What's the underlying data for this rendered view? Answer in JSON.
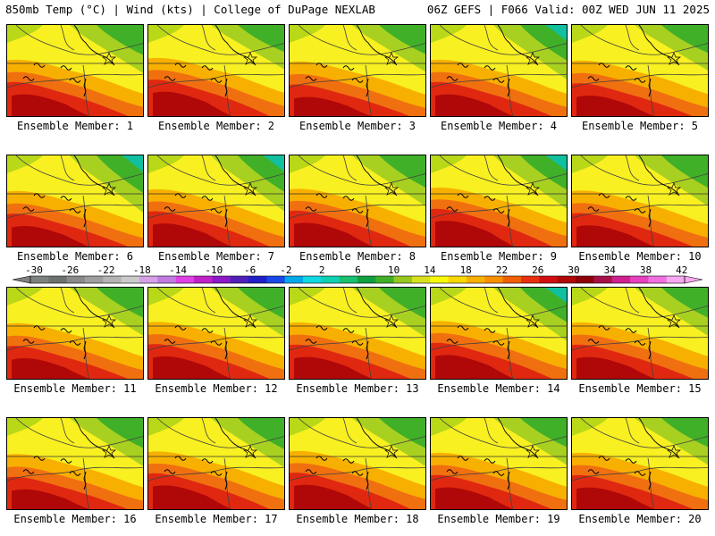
{
  "header": {
    "left": "850mb Temp (°C) | Wind (kts) | College of DuPage NEXLAB",
    "right": "06Z GEFS | F066 Valid: 00Z WED JUN 11 2025"
  },
  "colorbar": {
    "labels": [
      "-30",
      "-26",
      "-22",
      "-18",
      "-14",
      "-10",
      "-6",
      "-2",
      "2",
      "6",
      "10",
      "14",
      "18",
      "22",
      "26",
      "30",
      "34",
      "38",
      "42"
    ],
    "colors": [
      "#7e827e",
      "#6e726e",
      "#8a8a8a",
      "#9e9e9e",
      "#b4b4b4",
      "#cacaca",
      "#d6a0e6",
      "#c37ae0",
      "#e040e8",
      "#c020c8",
      "#8c18c8",
      "#5020b8",
      "#2020c8",
      "#1848e8",
      "#00a8e8",
      "#10d8e0",
      "#10d0b0",
      "#18c070",
      "#10a040",
      "#40b028",
      "#98c820",
      "#d8e020",
      "#f8f808",
      "#f8d800",
      "#f8b000",
      "#f89000",
      "#f06000",
      "#e83010",
      "#d01010",
      "#b00808",
      "#900008",
      "#a81048",
      "#d02090",
      "#e840c0",
      "#f070e0",
      "#f8a8f0"
    ]
  },
  "members": [
    {
      "label": "Ensemble Member: 1"
    },
    {
      "label": "Ensemble Member: 2"
    },
    {
      "label": "Ensemble Member: 3"
    },
    {
      "label": "Ensemble Member: 4"
    },
    {
      "label": "Ensemble Member: 5"
    },
    {
      "label": "Ensemble Member: 6"
    },
    {
      "label": "Ensemble Member: 7"
    },
    {
      "label": "Ensemble Member: 8"
    },
    {
      "label": "Ensemble Member: 9"
    },
    {
      "label": "Ensemble Member: 10"
    },
    {
      "label": "Ensemble Member: 11"
    },
    {
      "label": "Ensemble Member: 12"
    },
    {
      "label": "Ensemble Member: 13"
    },
    {
      "label": "Ensemble Member: 14"
    },
    {
      "label": "Ensemble Member: 15"
    },
    {
      "label": "Ensemble Member: 16"
    },
    {
      "label": "Ensemble Member: 17"
    },
    {
      "label": "Ensemble Member: 18"
    },
    {
      "label": "Ensemble Member: 19"
    },
    {
      "label": "Ensemble Member: 20"
    }
  ]
}
